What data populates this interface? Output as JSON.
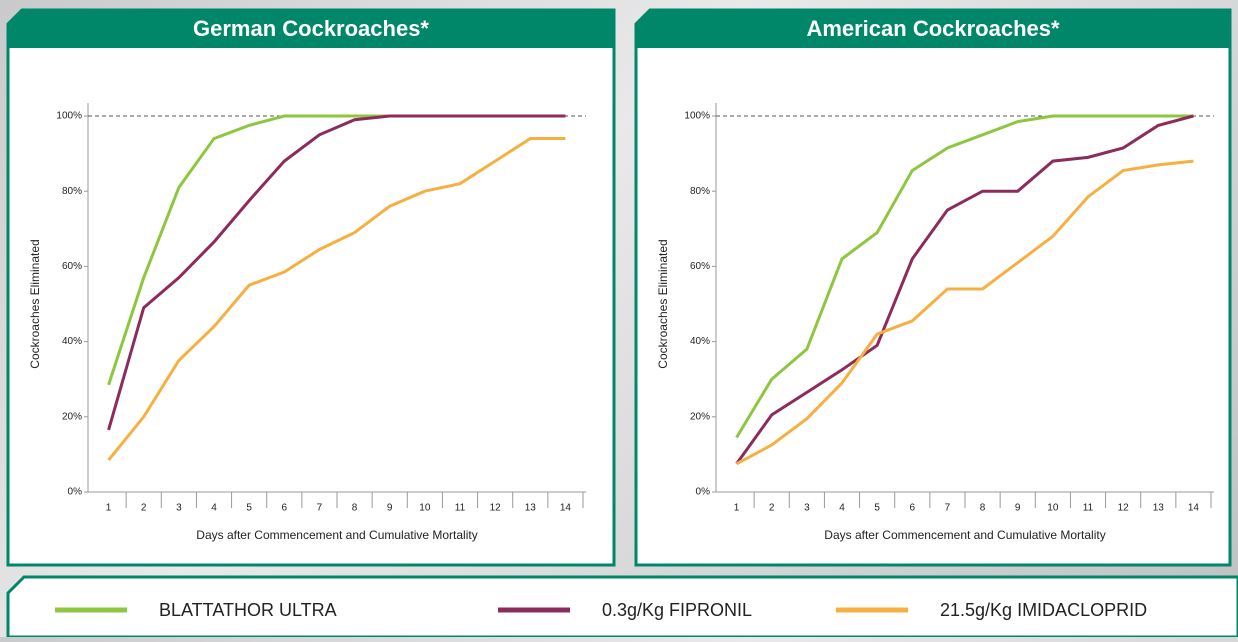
{
  "chart_data": [
    {
      "type": "line",
      "title": "German Cockroaches*",
      "xlabel": "Days after Commencement and Cumulative Mortality",
      "ylabel": "Cockroaches Eliminated",
      "categories": [
        "1",
        "2",
        "3",
        "4",
        "5",
        "6",
        "7",
        "8",
        "9",
        "10",
        "11",
        "12",
        "13",
        "14"
      ],
      "series": [
        {
          "name": "BLATTATHOR ULTRA",
          "color": "#8dc63f",
          "values": [
            28.5,
            57,
            81,
            94,
            97.5,
            100,
            100,
            100,
            100,
            100,
            100,
            100,
            100,
            100
          ]
        },
        {
          "name": "0.3g/Kg FIPRONIL",
          "color": "#8b2c5c",
          "values": [
            16.5,
            49,
            57,
            66.5,
            77.5,
            88,
            95,
            99,
            100,
            100,
            100,
            100,
            100,
            100
          ]
        },
        {
          "name": "21.5g/Kg IMIDACLOPRID",
          "color": "#f5b041",
          "values": [
            8.5,
            20,
            35,
            44,
            55,
            58.5,
            64.5,
            69,
            76,
            80,
            82,
            88,
            94,
            94
          ]
        }
      ],
      "ylim": [
        0,
        100
      ],
      "yticks": [
        {
          "value": 0,
          "label": "0%"
        },
        {
          "value": 20,
          "label": "20%"
        },
        {
          "value": 40,
          "label": "40%"
        },
        {
          "value": 60,
          "label": "60%"
        },
        {
          "value": 80,
          "label": "80%"
        },
        {
          "value": 100,
          "label": "100%"
        }
      ],
      "reference_line": 100
    },
    {
      "type": "line",
      "title": "American Cockroaches*",
      "xlabel": "Days after Commencement and Cumulative Mortality",
      "ylabel": "Cockroaches Eliminated",
      "categories": [
        "1",
        "2",
        "3",
        "4",
        "5",
        "6",
        "7",
        "8",
        "9",
        "10",
        "11",
        "12",
        "13",
        "14"
      ],
      "series": [
        {
          "name": "BLATTATHOR ULTRA",
          "color": "#8dc63f",
          "values": [
            14.5,
            30,
            38,
            62,
            69,
            85.5,
            91.5,
            95,
            98.5,
            100,
            100,
            100,
            100,
            100
          ]
        },
        {
          "name": "0.3g/Kg FIPRONIL",
          "color": "#8b2c5c",
          "values": [
            7.5,
            20.5,
            26.5,
            32.5,
            39,
            62,
            75,
            80,
            80,
            88,
            89,
            91.5,
            97.5,
            100
          ]
        },
        {
          "name": "21.5g/Kg IMIDACLOPRID",
          "color": "#f5b041",
          "values": [
            7.5,
            12.5,
            19.5,
            29,
            42,
            45.5,
            54,
            54,
            61,
            68,
            78.5,
            85.5,
            87,
            88
          ]
        }
      ],
      "ylim": [
        0,
        100
      ],
      "yticks": [
        {
          "value": 0,
          "label": "0%"
        },
        {
          "value": 20,
          "label": "20%"
        },
        {
          "value": 40,
          "label": "40%"
        },
        {
          "value": 60,
          "label": "60%"
        },
        {
          "value": 80,
          "label": "80%"
        },
        {
          "value": 100,
          "label": "100%"
        }
      ],
      "reference_line": 100
    }
  ]
}
